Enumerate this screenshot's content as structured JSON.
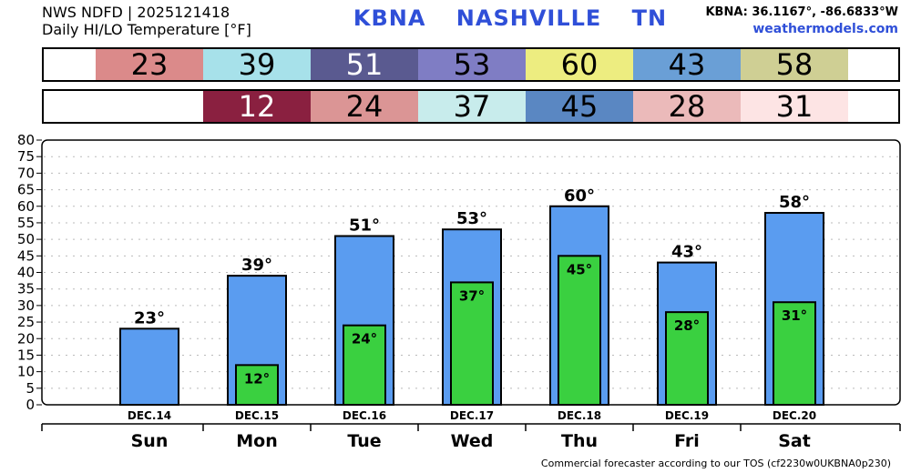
{
  "header": {
    "line1": "NWS NDFD | 2025121418",
    "line2": "Daily HI/LO Temperature [°F]",
    "station": "KBNA",
    "city": "NASHVILLE",
    "state": "TN",
    "coords": "KBNA: 36.1167°, -86.6833°W",
    "site": "weathermodels.com"
  },
  "footer": "Commercial forecaster according to our TOS (cf2230w0UKBNA0p230)",
  "strip_hi": [
    {
      "value": "23",
      "color": "#db8a8a"
    },
    {
      "value": "39",
      "color": "#a7e1ea"
    },
    {
      "value": "51",
      "color": "#5a5a90",
      "text_color": "#ffffff"
    },
    {
      "value": "53",
      "color": "#7f7dc4"
    },
    {
      "value": "60",
      "color": "#eded80"
    },
    {
      "value": "43",
      "color": "#6a9fd6"
    },
    {
      "value": "58",
      "color": "#cfcf94"
    }
  ],
  "strip_lo": [
    {
      "value": "",
      "color": "#ffffff"
    },
    {
      "value": "12",
      "color": "#8a2040",
      "text_color": "#ffffff"
    },
    {
      "value": "24",
      "color": "#db9595"
    },
    {
      "value": "37",
      "color": "#c8ecec"
    },
    {
      "value": "45",
      "color": "#5a87c2"
    },
    {
      "value": "28",
      "color": "#ebbaba"
    },
    {
      "value": "31",
      "color": "#fde4e4"
    }
  ],
  "chart_data": {
    "type": "bar",
    "categories": [
      "Sun",
      "Mon",
      "Tue",
      "Wed",
      "Thu",
      "Fri",
      "Sat"
    ],
    "dates": [
      "DEC.14",
      "DEC.15",
      "DEC.16",
      "DEC.17",
      "DEC.18",
      "DEC.19",
      "DEC.20"
    ],
    "series": [
      {
        "values": [
          23,
          39,
          51,
          53,
          60,
          43,
          58
        ],
        "color": "#5a9cf0"
      },
      {
        "values": [
          null,
          12,
          24,
          37,
          45,
          28,
          31
        ],
        "color": "#3ad040"
      }
    ],
    "hi_labels": [
      "23°",
      "39°",
      "51°",
      "53°",
      "60°",
      "43°",
      "58°"
    ],
    "lo_labels": [
      "",
      "12°",
      "24°",
      "37°",
      "45°",
      "28°",
      "31°"
    ],
    "ylim": [
      0,
      80
    ],
    "yticks": [
      "0",
      "5",
      "10",
      "15",
      "20",
      "25",
      "30",
      "35",
      "40",
      "45",
      "50",
      "55",
      "60",
      "65",
      "70",
      "75",
      "80"
    ],
    "grid": true
  }
}
